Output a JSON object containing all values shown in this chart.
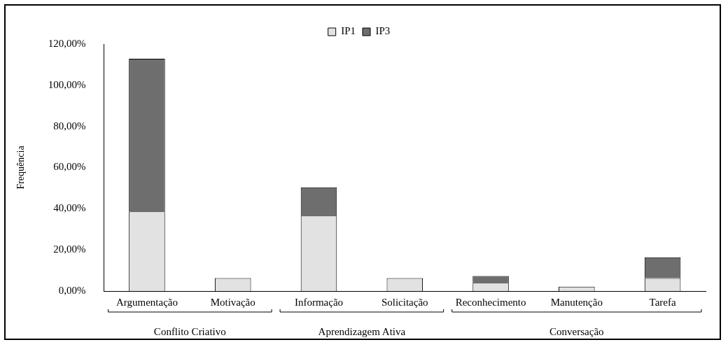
{
  "chart_data": {
    "type": "bar",
    "stacked": true,
    "ylabel": "Frequência",
    "categories": [
      "Argumentação",
      "Motivação",
      "Informação",
      "Solicitação",
      "Reconhecimento",
      "Manutenção",
      "Tarefa"
    ],
    "series": [
      {
        "name": "IP1",
        "color": "#e2e2e2",
        "values": [
          38.7,
          6.3,
          36.6,
          6.3,
          4.0,
          2.1,
          6.3
        ]
      },
      {
        "name": "IP3",
        "color": "#6e6e6e",
        "values": [
          74.2,
          null,
          13.8,
          null,
          3.3,
          null,
          10.1
        ]
      }
    ],
    "ylim": [
      0,
      120
    ],
    "yticks": [
      {
        "value": 0,
        "label": "0,00%"
      },
      {
        "value": 20,
        "label": "20,00%"
      },
      {
        "value": 40,
        "label": "40,00%"
      },
      {
        "value": 60,
        "label": "60,00%"
      },
      {
        "value": 80,
        "label": "80,00%"
      },
      {
        "value": 100,
        "label": "100,00%"
      },
      {
        "value": 120,
        "label": "120,00%"
      }
    ],
    "annotations": [
      "Conflito Criativo",
      "Aprendizagem Ativa",
      "Conversação"
    ],
    "legend": "top",
    "grid": false
  }
}
